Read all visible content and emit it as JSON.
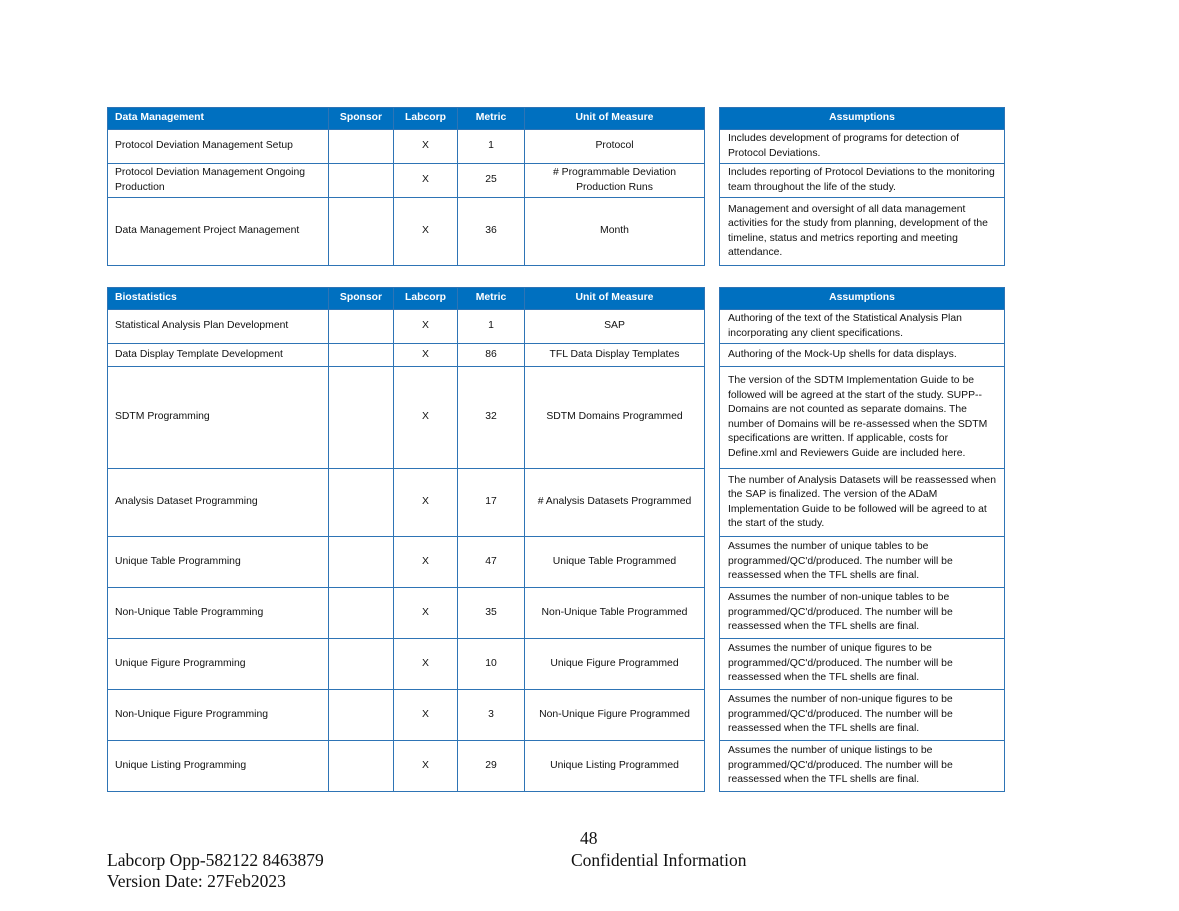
{
  "columns": [
    "Sponsor",
    "Labcorp",
    "Metric",
    "Unit of Measure"
  ],
  "assumptions_header": "Assumptions",
  "tables": [
    {
      "title": "Data Management",
      "rows": [
        {
          "activity": "Protocol Deviation Management Setup",
          "sponsor": "",
          "labcorp": "X",
          "metric": "1",
          "unit": "Protocol",
          "assumption": "Includes development of programs for detection of Protocol Deviations."
        },
        {
          "activity": "Protocol Deviation Management Ongoing Production",
          "sponsor": "",
          "labcorp": "X",
          "metric": "25",
          "unit": "# Programmable Deviation Production Runs",
          "assumption": "Includes reporting of Protocol Deviations to the monitoring team throughout the life of the study."
        },
        {
          "activity": "Data Management Project Management",
          "sponsor": "",
          "labcorp": "X",
          "metric": "36",
          "unit": "Month",
          "assumption": "Management and oversight of all data management activities for the study from planning, development of the timeline, status and metrics reporting and meeting attendance."
        }
      ]
    },
    {
      "title": "Biostatistics",
      "rows": [
        {
          "activity": "Statistical Analysis Plan Development",
          "sponsor": "",
          "labcorp": "X",
          "metric": "1",
          "unit": "SAP",
          "assumption": "Authoring of the text of the Statistical Analysis Plan incorporating any client specifications."
        },
        {
          "activity": "Data Display Template Development",
          "sponsor": "",
          "labcorp": "X",
          "metric": "86",
          "unit": "TFL Data Display Templates",
          "assumption": "Authoring of the Mock-Up shells for data displays."
        },
        {
          "activity": "SDTM Programming",
          "sponsor": "",
          "labcorp": "X",
          "metric": "32",
          "unit": "SDTM Domains Programmed",
          "assumption": "The version of the SDTM Implementation Guide to be followed will be agreed at the start of the study. SUPP-- Domains are not counted as separate domains. The number of Domains will be re-assessed when the SDTM specifications are written. If applicable, costs for Define.xml and Reviewers Guide are included here."
        },
        {
          "activity": "Analysis Dataset Programming",
          "sponsor": "",
          "labcorp": "X",
          "metric": "17",
          "unit": "# Analysis Datasets Programmed",
          "assumption": "The number of Analysis Datasets will be reassessed when the SAP is finalized. The version of the ADaM Implementation Guide to be followed will be agreed to at the start of the study."
        },
        {
          "activity": "Unique Table Programming",
          "sponsor": "",
          "labcorp": "X",
          "metric": "47",
          "unit": "Unique Table Programmed",
          "assumption": "Assumes the number of unique tables to be programmed/QC'd/produced. The number will be reassessed when the TFL shells are final."
        },
        {
          "activity": "Non-Unique Table Programming",
          "sponsor": "",
          "labcorp": "X",
          "metric": "35",
          "unit": "Non-Unique Table Programmed",
          "assumption": "Assumes the number of non-unique tables to be programmed/QC'd/produced. The number will be reassessed when the TFL shells are final."
        },
        {
          "activity": "Unique Figure Programming",
          "sponsor": "",
          "labcorp": "X",
          "metric": "10",
          "unit": "Unique Figure Programmed",
          "assumption": "Assumes the number of unique figures to be programmed/QC'd/produced. The number will be reassessed when the TFL shells are final."
        },
        {
          "activity": "Non-Unique Figure Programming",
          "sponsor": "",
          "labcorp": "X",
          "metric": "3",
          "unit": "Non-Unique Figure Programmed",
          "assumption": "Assumes the number of non-unique figures to be programmed/QC'd/produced. The number will be reassessed when the TFL shells are final."
        },
        {
          "activity": "Unique Listing Programming",
          "sponsor": "",
          "labcorp": "X",
          "metric": "29",
          "unit": "Unique Listing Programmed",
          "assumption": "Assumes the number of unique listings to be programmed/QC'd/produced. The number will be reassessed when the TFL shells are final."
        }
      ]
    }
  ],
  "footer": {
    "page_number": "48",
    "doc_id": "Labcorp Opp-582122 8463879",
    "confidential": "Confidential Information",
    "version_date": "Version Date: 27Feb2023"
  }
}
